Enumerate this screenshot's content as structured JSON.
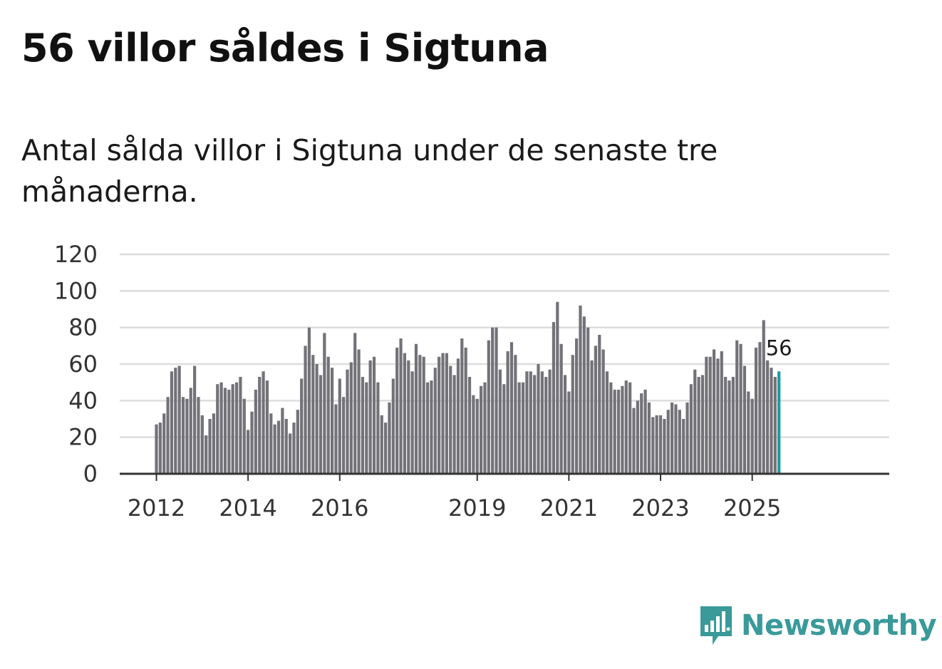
{
  "title": "56 villor såldes i Sigtuna",
  "subtitle": "Antal sålda villor i Sigtuna under de senaste tre månaderna.",
  "brand": {
    "name": "Newsworthy",
    "icon": "newsworthy-logo-icon"
  },
  "colors": {
    "bar": "#737278",
    "highlight": "#1b9c9c",
    "grid": "#dddddd",
    "axis": "#333333",
    "brand": "#3a9a9a"
  },
  "chart_data": {
    "type": "bar",
    "title": "56 villor såldes i Sigtuna",
    "xlabel": "",
    "ylabel": "",
    "ylim": [
      0,
      120
    ],
    "yticks": [
      0,
      20,
      40,
      60,
      80,
      100,
      120
    ],
    "xtick_labels": [
      {
        "label": "2012",
        "index": 0
      },
      {
        "label": "2014",
        "index": 24
      },
      {
        "label": "2016",
        "index": 48
      },
      {
        "label": "2019",
        "index": 84
      },
      {
        "label": "2021",
        "index": 108
      },
      {
        "label": "2023",
        "index": 132
      },
      {
        "label": "2025",
        "index": 156
      }
    ],
    "start": "2012-01",
    "values": [
      27,
      28,
      33,
      42,
      56,
      58,
      59,
      42,
      41,
      47,
      59,
      42,
      32,
      21,
      30,
      33,
      49,
      50,
      47,
      46,
      49,
      50,
      53,
      41,
      24,
      34,
      46,
      53,
      56,
      51,
      33,
      27,
      29,
      36,
      30,
      22,
      28,
      35,
      52,
      70,
      80,
      65,
      60,
      54,
      77,
      64,
      58,
      38,
      52,
      42,
      57,
      61,
      77,
      68,
      53,
      50,
      62,
      64,
      50,
      32,
      28,
      39,
      52,
      69,
      74,
      66,
      62,
      56,
      71,
      65,
      64,
      50,
      51,
      58,
      64,
      66,
      66,
      59,
      54,
      63,
      74,
      69,
      53,
      43,
      41,
      48,
      50,
      73,
      80,
      80,
      57,
      49,
      67,
      72,
      65,
      50,
      50,
      56,
      56,
      54,
      60,
      56,
      53,
      57,
      83,
      94,
      71,
      54,
      45,
      65,
      74,
      92,
      86,
      80,
      62,
      70,
      76,
      68,
      56,
      50,
      46,
      46,
      48,
      51,
      50,
      36,
      40,
      44,
      46,
      39,
      31,
      32,
      32,
      30,
      35,
      39,
      38,
      35,
      30,
      39,
      49,
      57,
      53,
      54,
      64,
      64,
      68,
      63,
      67,
      53,
      51,
      53,
      73,
      71,
      59,
      45,
      41,
      69,
      72,
      84,
      62,
      58,
      53,
      56
    ],
    "highlight_last": true,
    "last_value_label": "56"
  }
}
